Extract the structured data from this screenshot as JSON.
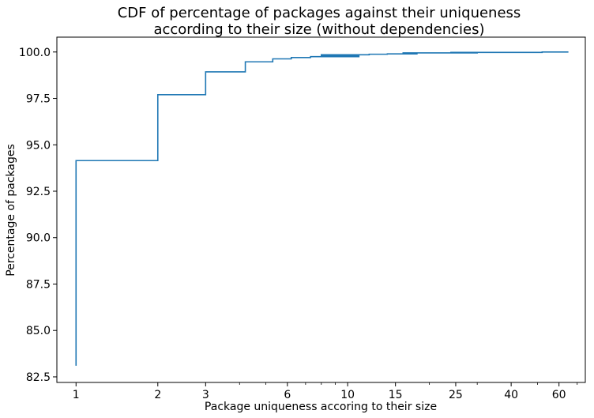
{
  "chart_data": {
    "type": "line",
    "title_line1": "CDF of percentage of packages against their uniqueness",
    "title_line2": "according to their size (without dependencies)",
    "xlabel": "Package uniqueness accoring to their size",
    "ylabel": "Percentage of packages",
    "x_scale": "log",
    "xlim": [
      0.85,
      75
    ],
    "ylim": [
      82.2,
      100.8
    ],
    "x_ticks": [
      1,
      2,
      3,
      6,
      10,
      15,
      25,
      40,
      60
    ],
    "x_tick_labels": [
      "1",
      "2",
      "3",
      "6",
      "10",
      "15",
      "25",
      "40",
      "60"
    ],
    "y_ticks": [
      82.5,
      85.0,
      87.5,
      90.0,
      92.5,
      95.0,
      97.5,
      100.0
    ],
    "y_tick_labels": [
      "82.5",
      "85.0",
      "87.5",
      "90.0",
      "92.5",
      "95.0",
      "97.5",
      "100.0"
    ],
    "grid": false,
    "line_color": "#1f77b4",
    "series": [
      {
        "x": [
          1,
          1,
          2,
          2,
          3,
          3,
          4.2,
          4.2,
          5.3,
          5.3,
          6.2,
          6.2,
          7.3,
          7.3,
          11,
          11,
          8,
          8,
          12,
          12,
          14,
          14,
          18,
          18,
          16,
          16,
          30,
          30,
          24,
          24,
          52,
          52,
          65
        ],
        "y": [
          83.1,
          94.15,
          94.15,
          97.7,
          97.7,
          98.93,
          98.93,
          99.47,
          99.47,
          99.63,
          99.63,
          99.7,
          99.7,
          99.75,
          99.75,
          99.82,
          99.82,
          99.85,
          99.85,
          99.88,
          99.88,
          99.9,
          99.9,
          99.93,
          99.93,
          99.95,
          99.95,
          99.96,
          99.96,
          99.98,
          99.98,
          100.0,
          100.0
        ]
      }
    ]
  }
}
